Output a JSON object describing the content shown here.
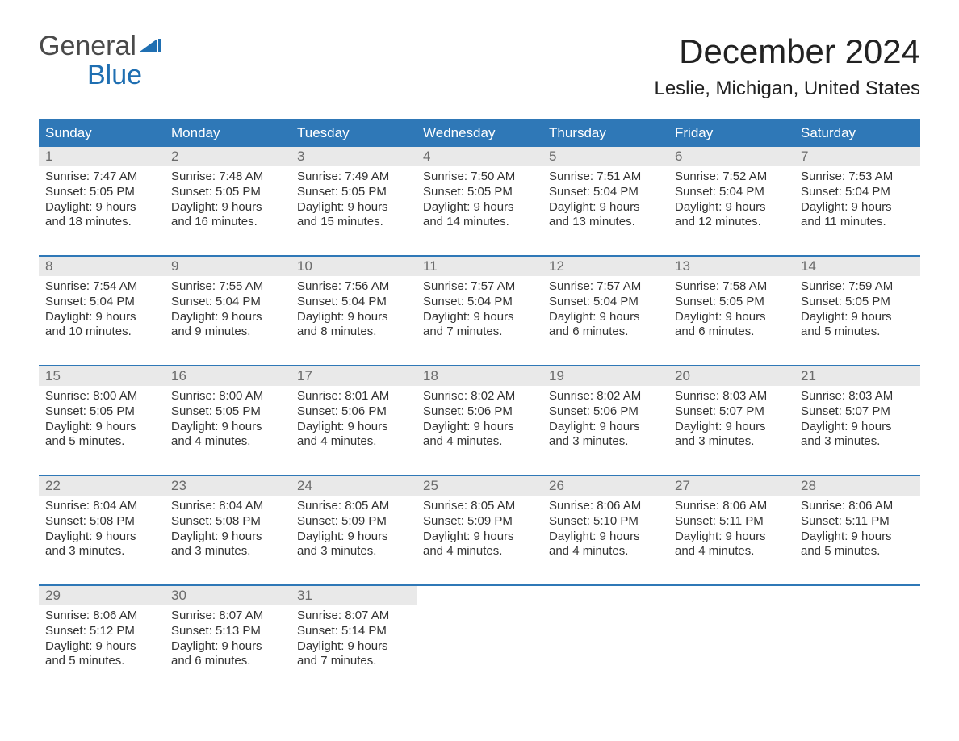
{
  "logo": {
    "word1": "General",
    "word2": "Blue"
  },
  "title": "December 2024",
  "location": "Leslie, Michigan, United States",
  "colors": {
    "header_bg": "#2f78b7",
    "header_text": "#ffffff",
    "daynum_bg": "#e9e9e9",
    "daynum_text": "#6b6b6b",
    "body_text": "#333333",
    "week_border": "#2f78b7",
    "logo_gray": "#4a4a4a",
    "logo_blue": "#1f6fb2"
  },
  "day_names": [
    "Sunday",
    "Monday",
    "Tuesday",
    "Wednesday",
    "Thursday",
    "Friday",
    "Saturday"
  ],
  "weeks": [
    [
      {
        "n": "1",
        "sr": "Sunrise: 7:47 AM",
        "ss": "Sunset: 5:05 PM",
        "d1": "Daylight: 9 hours",
        "d2": "and 18 minutes."
      },
      {
        "n": "2",
        "sr": "Sunrise: 7:48 AM",
        "ss": "Sunset: 5:05 PM",
        "d1": "Daylight: 9 hours",
        "d2": "and 16 minutes."
      },
      {
        "n": "3",
        "sr": "Sunrise: 7:49 AM",
        "ss": "Sunset: 5:05 PM",
        "d1": "Daylight: 9 hours",
        "d2": "and 15 minutes."
      },
      {
        "n": "4",
        "sr": "Sunrise: 7:50 AM",
        "ss": "Sunset: 5:05 PM",
        "d1": "Daylight: 9 hours",
        "d2": "and 14 minutes."
      },
      {
        "n": "5",
        "sr": "Sunrise: 7:51 AM",
        "ss": "Sunset: 5:04 PM",
        "d1": "Daylight: 9 hours",
        "d2": "and 13 minutes."
      },
      {
        "n": "6",
        "sr": "Sunrise: 7:52 AM",
        "ss": "Sunset: 5:04 PM",
        "d1": "Daylight: 9 hours",
        "d2": "and 12 minutes."
      },
      {
        "n": "7",
        "sr": "Sunrise: 7:53 AM",
        "ss": "Sunset: 5:04 PM",
        "d1": "Daylight: 9 hours",
        "d2": "and 11 minutes."
      }
    ],
    [
      {
        "n": "8",
        "sr": "Sunrise: 7:54 AM",
        "ss": "Sunset: 5:04 PM",
        "d1": "Daylight: 9 hours",
        "d2": "and 10 minutes."
      },
      {
        "n": "9",
        "sr": "Sunrise: 7:55 AM",
        "ss": "Sunset: 5:04 PM",
        "d1": "Daylight: 9 hours",
        "d2": "and 9 minutes."
      },
      {
        "n": "10",
        "sr": "Sunrise: 7:56 AM",
        "ss": "Sunset: 5:04 PM",
        "d1": "Daylight: 9 hours",
        "d2": "and 8 minutes."
      },
      {
        "n": "11",
        "sr": "Sunrise: 7:57 AM",
        "ss": "Sunset: 5:04 PM",
        "d1": "Daylight: 9 hours",
        "d2": "and 7 minutes."
      },
      {
        "n": "12",
        "sr": "Sunrise: 7:57 AM",
        "ss": "Sunset: 5:04 PM",
        "d1": "Daylight: 9 hours",
        "d2": "and 6 minutes."
      },
      {
        "n": "13",
        "sr": "Sunrise: 7:58 AM",
        "ss": "Sunset: 5:05 PM",
        "d1": "Daylight: 9 hours",
        "d2": "and 6 minutes."
      },
      {
        "n": "14",
        "sr": "Sunrise: 7:59 AM",
        "ss": "Sunset: 5:05 PM",
        "d1": "Daylight: 9 hours",
        "d2": "and 5 minutes."
      }
    ],
    [
      {
        "n": "15",
        "sr": "Sunrise: 8:00 AM",
        "ss": "Sunset: 5:05 PM",
        "d1": "Daylight: 9 hours",
        "d2": "and 5 minutes."
      },
      {
        "n": "16",
        "sr": "Sunrise: 8:00 AM",
        "ss": "Sunset: 5:05 PM",
        "d1": "Daylight: 9 hours",
        "d2": "and 4 minutes."
      },
      {
        "n": "17",
        "sr": "Sunrise: 8:01 AM",
        "ss": "Sunset: 5:06 PM",
        "d1": "Daylight: 9 hours",
        "d2": "and 4 minutes."
      },
      {
        "n": "18",
        "sr": "Sunrise: 8:02 AM",
        "ss": "Sunset: 5:06 PM",
        "d1": "Daylight: 9 hours",
        "d2": "and 4 minutes."
      },
      {
        "n": "19",
        "sr": "Sunrise: 8:02 AM",
        "ss": "Sunset: 5:06 PM",
        "d1": "Daylight: 9 hours",
        "d2": "and 3 minutes."
      },
      {
        "n": "20",
        "sr": "Sunrise: 8:03 AM",
        "ss": "Sunset: 5:07 PM",
        "d1": "Daylight: 9 hours",
        "d2": "and 3 minutes."
      },
      {
        "n": "21",
        "sr": "Sunrise: 8:03 AM",
        "ss": "Sunset: 5:07 PM",
        "d1": "Daylight: 9 hours",
        "d2": "and 3 minutes."
      }
    ],
    [
      {
        "n": "22",
        "sr": "Sunrise: 8:04 AM",
        "ss": "Sunset: 5:08 PM",
        "d1": "Daylight: 9 hours",
        "d2": "and 3 minutes."
      },
      {
        "n": "23",
        "sr": "Sunrise: 8:04 AM",
        "ss": "Sunset: 5:08 PM",
        "d1": "Daylight: 9 hours",
        "d2": "and 3 minutes."
      },
      {
        "n": "24",
        "sr": "Sunrise: 8:05 AM",
        "ss": "Sunset: 5:09 PM",
        "d1": "Daylight: 9 hours",
        "d2": "and 3 minutes."
      },
      {
        "n": "25",
        "sr": "Sunrise: 8:05 AM",
        "ss": "Sunset: 5:09 PM",
        "d1": "Daylight: 9 hours",
        "d2": "and 4 minutes."
      },
      {
        "n": "26",
        "sr": "Sunrise: 8:06 AM",
        "ss": "Sunset: 5:10 PM",
        "d1": "Daylight: 9 hours",
        "d2": "and 4 minutes."
      },
      {
        "n": "27",
        "sr": "Sunrise: 8:06 AM",
        "ss": "Sunset: 5:11 PM",
        "d1": "Daylight: 9 hours",
        "d2": "and 4 minutes."
      },
      {
        "n": "28",
        "sr": "Sunrise: 8:06 AM",
        "ss": "Sunset: 5:11 PM",
        "d1": "Daylight: 9 hours",
        "d2": "and 5 minutes."
      }
    ],
    [
      {
        "n": "29",
        "sr": "Sunrise: 8:06 AM",
        "ss": "Sunset: 5:12 PM",
        "d1": "Daylight: 9 hours",
        "d2": "and 5 minutes."
      },
      {
        "n": "30",
        "sr": "Sunrise: 8:07 AM",
        "ss": "Sunset: 5:13 PM",
        "d1": "Daylight: 9 hours",
        "d2": "and 6 minutes."
      },
      {
        "n": "31",
        "sr": "Sunrise: 8:07 AM",
        "ss": "Sunset: 5:14 PM",
        "d1": "Daylight: 9 hours",
        "d2": "and 7 minutes."
      },
      {
        "empty": true
      },
      {
        "empty": true
      },
      {
        "empty": true
      },
      {
        "empty": true
      }
    ]
  ]
}
